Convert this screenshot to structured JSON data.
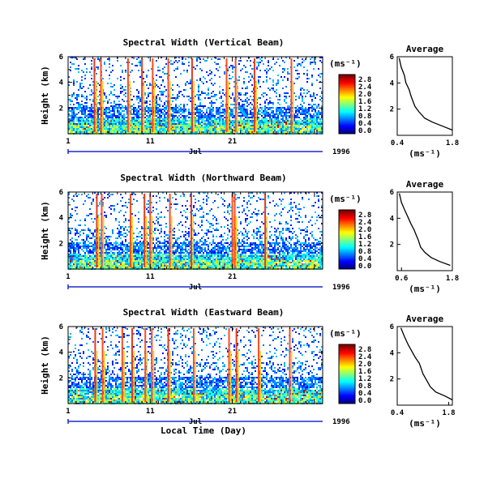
{
  "chart_data": [
    {
      "type": "heatmap",
      "title": "Spectral Width (Vertical Beam)",
      "ylabel": "Height (km)",
      "ylim": [
        0,
        6
      ],
      "yticks": [
        "6",
        "4",
        "2"
      ],
      "xticks": [
        "1",
        "11",
        "21"
      ],
      "xrange_days": [
        1,
        32
      ],
      "month": "Jul",
      "year": "1996",
      "colorbar": {
        "unit": "(ms⁻¹)",
        "ticks": [
          "2.8",
          "2.4",
          "2.0",
          "1.6",
          "1.2",
          "0.8",
          "0.4",
          "0.0"
        ],
        "range": [
          0,
          2.8
        ]
      },
      "vivid_spikes_day": [
        4.2,
        5.0,
        8.3,
        10.0,
        11.3,
        13.2,
        16.1,
        20.3,
        21.4,
        23.7,
        28.2
      ],
      "average": {
        "title": "Average",
        "xlabel": "(ms⁻¹)",
        "xticks": [
          "0.4",
          "1.8"
        ],
        "xlim": [
          0.4,
          1.8
        ],
        "yticks": [
          "6",
          "4",
          "2"
        ],
        "ylim": [
          0,
          6
        ],
        "x": [
          1.8,
          1.55,
          1.3,
          1.1,
          0.95,
          0.85,
          0.8,
          0.75,
          0.7,
          0.62,
          0.58,
          0.5,
          0.45
        ],
        "y": [
          0.4,
          0.7,
          1.0,
          1.3,
          1.8,
          2.2,
          2.6,
          3.0,
          3.5,
          4.0,
          4.6,
          5.2,
          5.9
        ]
      }
    },
    {
      "type": "heatmap",
      "title": "Spectral Width (Northward Beam)",
      "ylabel": "Height (km)",
      "ylim": [
        0,
        6
      ],
      "yticks": [
        "6",
        "4",
        "2"
      ],
      "xticks": [
        "1",
        "11",
        "21"
      ],
      "xrange_days": [
        1,
        32
      ],
      "month": "Jul",
      "year": "1996",
      "colorbar": {
        "unit": "(ms⁻¹)",
        "ticks": [
          "2.8",
          "2.4",
          "2.0",
          "1.6",
          "1.2",
          "0.8",
          "0.4",
          "0.0"
        ],
        "range": [
          0,
          2.8
        ]
      },
      "vivid_spikes_day": [
        4.5,
        5.1,
        8.6,
        10.3,
        11.0,
        13.4,
        16.0,
        21.0,
        21.3,
        25.0
      ],
      "average": {
        "title": "Average",
        "xlabel": "(ms⁻¹)",
        "xticks": [
          "0.6",
          "1.8"
        ],
        "xlim": [
          0.5,
          1.8
        ],
        "yticks": [
          "6",
          "4",
          "2"
        ],
        "ylim": [
          0,
          6
        ],
        "x": [
          1.75,
          1.5,
          1.3,
          1.15,
          1.05,
          1.0,
          0.95,
          0.9,
          0.82,
          0.75,
          0.68,
          0.6,
          0.55
        ],
        "y": [
          0.4,
          0.7,
          1.0,
          1.4,
          1.8,
          2.3,
          2.7,
          3.1,
          3.6,
          4.1,
          4.6,
          5.2,
          5.9
        ]
      }
    },
    {
      "type": "heatmap",
      "title": "Spectral Width (Eastward Beam)",
      "ylabel": "Height (km)",
      "ylim": [
        0,
        6
      ],
      "yticks": [
        "6",
        "4",
        "2"
      ],
      "xticks": [
        "1",
        "11",
        "21"
      ],
      "xrange_days": [
        1,
        32
      ],
      "month": "Jul",
      "year": "1996",
      "xlabel": "Local Time (Day)",
      "colorbar": {
        "unit": "(ms⁻¹)",
        "ticks": [
          "2.8",
          "2.4",
          "2.0",
          "1.6",
          "1.2",
          "0.8",
          "0.4",
          "0.0"
        ],
        "range": [
          0,
          2.8
        ]
      },
      "vivid_spikes_day": [
        4.3,
        5.2,
        7.6,
        8.8,
        10.4,
        11.2,
        13.2,
        16.3,
        20.6,
        21.5,
        24.2,
        28.0
      ],
      "average": {
        "title": "Average",
        "xlabel": "(ms⁻¹)",
        "xticks": [
          "0.4",
          "1.8"
        ],
        "xlim": [
          0.4,
          1.9
        ],
        "yticks": [
          "6",
          "4",
          "2"
        ],
        "ylim": [
          0,
          6
        ],
        "x": [
          1.9,
          1.7,
          1.45,
          1.3,
          1.2,
          1.1,
          1.05,
          1.0,
          0.9,
          0.8,
          0.7,
          0.6,
          0.5
        ],
        "y": [
          0.4,
          0.7,
          1.0,
          1.4,
          1.9,
          2.4,
          2.8,
          3.2,
          3.6,
          4.1,
          4.6,
          5.2,
          5.9
        ]
      }
    }
  ]
}
